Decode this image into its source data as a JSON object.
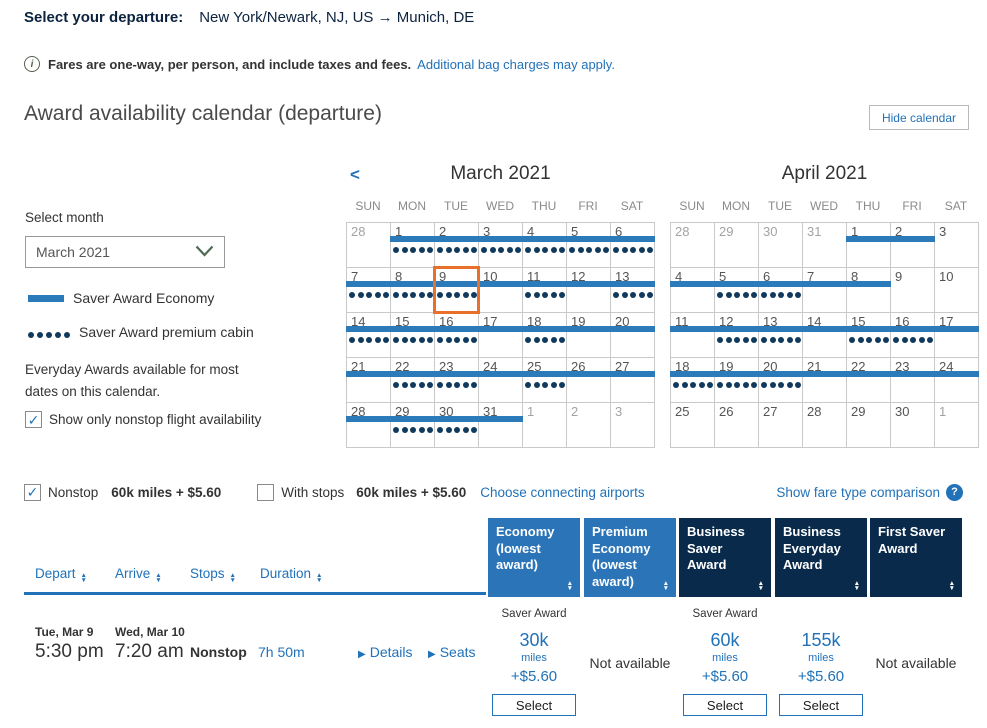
{
  "page": {
    "departure_label": "Select your departure:",
    "route": "New York/Newark, NJ, US → Munich, DE",
    "notice_text": "Fares are one-way, per person, and include taxes and fees.",
    "notice_link": "Additional bag charges may apply.",
    "info_icon": "i"
  },
  "calendar_section": {
    "title": "Award availability calendar (departure)",
    "hide_calendar_button": "Hide calendar",
    "select_month_label": "Select month",
    "month_dropdown_value": "March 2021",
    "prev_month_icon": "<",
    "legend": {
      "economy_label": "Saver Award Economy",
      "premium_label": "Saver Award premium cabin"
    },
    "note_line1": "Everyday Awards available for most",
    "note_line2": "dates on this calendar.",
    "nonstop_filter_label": "Show only nonstop flight availability",
    "colors": {
      "saver_bar": "#2b7bba",
      "premium_dot": "#0f3a5d",
      "selected_outline": "#e8702a"
    },
    "weekdays": [
      "SUN",
      "MON",
      "TUE",
      "WED",
      "THU",
      "FRI",
      "SAT"
    ],
    "months": [
      {
        "title": "March 2021",
        "weeks": [
          [
            {
              "d": 28,
              "o": 1
            },
            {
              "d": 1,
              "b": 1,
              "p": 1
            },
            {
              "d": 2,
              "b": 1,
              "p": 1
            },
            {
              "d": 3,
              "b": 1,
              "p": 1
            },
            {
              "d": 4,
              "b": 1,
              "p": 1
            },
            {
              "d": 5,
              "b": 1,
              "p": 1
            },
            {
              "d": 6,
              "b": 1,
              "p": 1
            }
          ],
          [
            {
              "d": 7,
              "b": 1,
              "p": 1
            },
            {
              "d": 8,
              "b": 1,
              "p": 1
            },
            {
              "d": 9,
              "b": 1,
              "p": 1,
              "s": 1
            },
            {
              "d": 10,
              "b": 1
            },
            {
              "d": 11,
              "b": 1,
              "p": 1
            },
            {
              "d": 12,
              "b": 1
            },
            {
              "d": 13,
              "b": 1,
              "p": 1
            }
          ],
          [
            {
              "d": 14,
              "b": 1,
              "p": 1
            },
            {
              "d": 15,
              "b": 1,
              "p": 1
            },
            {
              "d": 16,
              "b": 1,
              "p": 1
            },
            {
              "d": 17,
              "b": 1
            },
            {
              "d": 18,
              "b": 1,
              "p": 1
            },
            {
              "d": 19,
              "b": 1
            },
            {
              "d": 20,
              "b": 1
            }
          ],
          [
            {
              "d": 21,
              "b": 1
            },
            {
              "d": 22,
              "b": 1,
              "p": 1
            },
            {
              "d": 23,
              "b": 1,
              "p": 1
            },
            {
              "d": 24,
              "b": 1
            },
            {
              "d": 25,
              "b": 1,
              "p": 1
            },
            {
              "d": 26,
              "b": 1
            },
            {
              "d": 27,
              "b": 1
            }
          ],
          [
            {
              "d": 28,
              "b": 1
            },
            {
              "d": 29,
              "b": 1,
              "p": 1
            },
            {
              "d": 30,
              "b": 1,
              "p": 1
            },
            {
              "d": 31,
              "b": 1
            },
            {
              "d": 1,
              "o": 1
            },
            {
              "d": 2,
              "o": 1
            },
            {
              "d": 3,
              "o": 1
            }
          ]
        ]
      },
      {
        "title": "April 2021",
        "weeks": [
          [
            {
              "d": 28,
              "o": 1
            },
            {
              "d": 29,
              "o": 1
            },
            {
              "d": 30,
              "o": 1
            },
            {
              "d": 31,
              "o": 1
            },
            {
              "d": 1,
              "b": 1
            },
            {
              "d": 2,
              "b": 1
            },
            {
              "d": 3
            }
          ],
          [
            {
              "d": 4,
              "b": 1
            },
            {
              "d": 5,
              "b": 1,
              "p": 1
            },
            {
              "d": 6,
              "b": 1,
              "p": 1
            },
            {
              "d": 7,
              "b": 1
            },
            {
              "d": 8,
              "b": 1
            },
            {
              "d": 9
            },
            {
              "d": 10
            }
          ],
          [
            {
              "d": 11,
              "b": 1
            },
            {
              "d": 12,
              "b": 1,
              "p": 1
            },
            {
              "d": 13,
              "b": 1,
              "p": 1
            },
            {
              "d": 14,
              "b": 1
            },
            {
              "d": 15,
              "b": 1,
              "p": 1
            },
            {
              "d": 16,
              "b": 1,
              "p": 1
            },
            {
              "d": 17,
              "b": 1
            }
          ],
          [
            {
              "d": 18,
              "b": 1,
              "p": 1
            },
            {
              "d": 19,
              "b": 1,
              "p": 1
            },
            {
              "d": 20,
              "b": 1,
              "p": 1
            },
            {
              "d": 21,
              "b": 1
            },
            {
              "d": 22,
              "b": 1
            },
            {
              "d": 23,
              "b": 1
            },
            {
              "d": 24,
              "b": 1
            }
          ],
          [
            {
              "d": 25
            },
            {
              "d": 26
            },
            {
              "d": 27
            },
            {
              "d": 28
            },
            {
              "d": 29
            },
            {
              "d": 30
            },
            {
              "d": 1,
              "o": 1
            }
          ]
        ]
      }
    ]
  },
  "filters": {
    "nonstop_label": "Nonstop",
    "nonstop_price": "60k miles + $5.60",
    "nonstop_checked": true,
    "with_stops_label": "With stops",
    "with_stops_price": "60k miles + $5.60",
    "with_stops_checked": false,
    "connecting_airports_link": "Choose connecting airports",
    "fare_comparison_link": "Show fare type comparison",
    "help_icon": "?"
  },
  "results": {
    "sort_columns": [
      "Depart",
      "Arrive",
      "Stops",
      "Duration"
    ],
    "fare_columns": [
      {
        "label": "Economy (lowest award)",
        "tone": "light"
      },
      {
        "label": "Premium Economy (lowest award)",
        "tone": "light"
      },
      {
        "label": "Business Saver Award",
        "tone": "dark"
      },
      {
        "label": "Business Everyday Award",
        "tone": "dark"
      },
      {
        "label": "First Saver Award",
        "tone": "dark"
      }
    ],
    "flight": {
      "depart_date": "Tue, Mar 9",
      "depart_time": "5:30 pm",
      "arrive_date": "Wed, Mar 10",
      "arrive_time": "7:20 am",
      "stops": "Nonstop",
      "duration": "7h 50m",
      "details_link": "Details",
      "seats_link": "Seats",
      "expander_icon": "▶",
      "fares": [
        {
          "type": "award",
          "tag": "Saver Award",
          "miles": "30k",
          "unit": "miles",
          "fee": "+$5.60",
          "button": "Select"
        },
        {
          "type": "unavailable",
          "text": "Not available"
        },
        {
          "type": "award",
          "tag": "Saver Award",
          "miles": "60k",
          "unit": "miles",
          "fee": "+$5.60",
          "button": "Select"
        },
        {
          "type": "award",
          "tag": "",
          "miles": "155k",
          "unit": "miles",
          "fee": "+$5.60",
          "button": "Select"
        },
        {
          "type": "unavailable",
          "text": "Not available"
        }
      ]
    }
  }
}
